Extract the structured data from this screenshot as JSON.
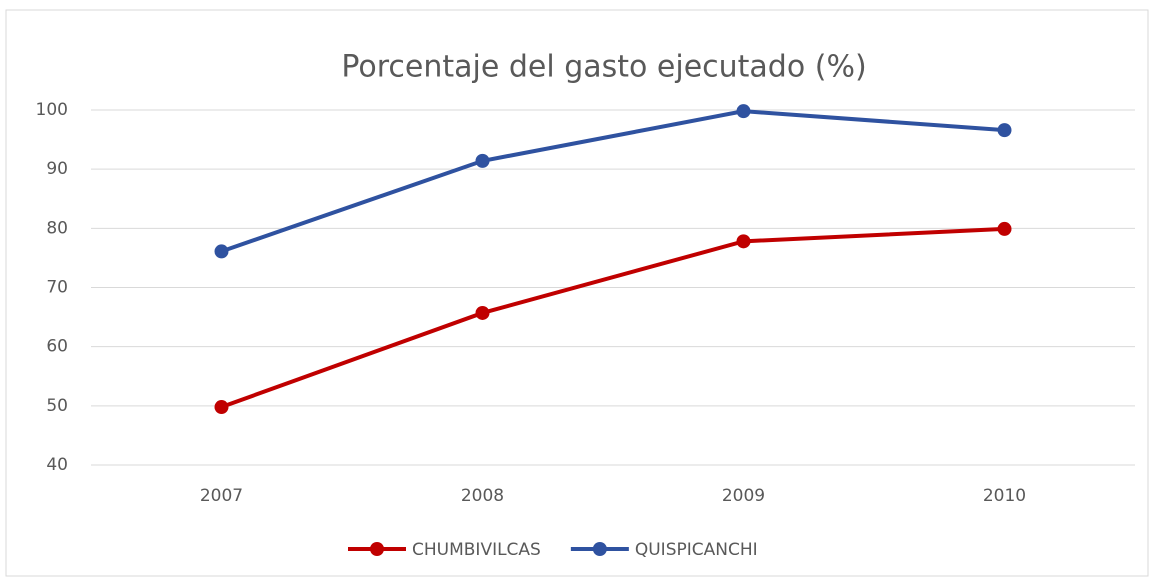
{
  "chart_data": {
    "type": "line",
    "title": "Porcentaje del gasto ejecutado (%)",
    "categories": [
      "2007",
      "2008",
      "2009",
      "2010"
    ],
    "series": [
      {
        "name": "CHUMBIVILCAS",
        "color": "#c00000",
        "values": [
          49.8,
          65.7,
          77.8,
          79.9
        ]
      },
      {
        "name": "QUISPICANCHI",
        "color": "#2f52a0",
        "values": [
          76.1,
          91.4,
          99.8,
          96.6
        ]
      }
    ],
    "ylim": [
      40,
      100
    ],
    "yticks": [
      40,
      50,
      60,
      70,
      80,
      90,
      100
    ],
    "grid": true,
    "legend": "bottom"
  }
}
